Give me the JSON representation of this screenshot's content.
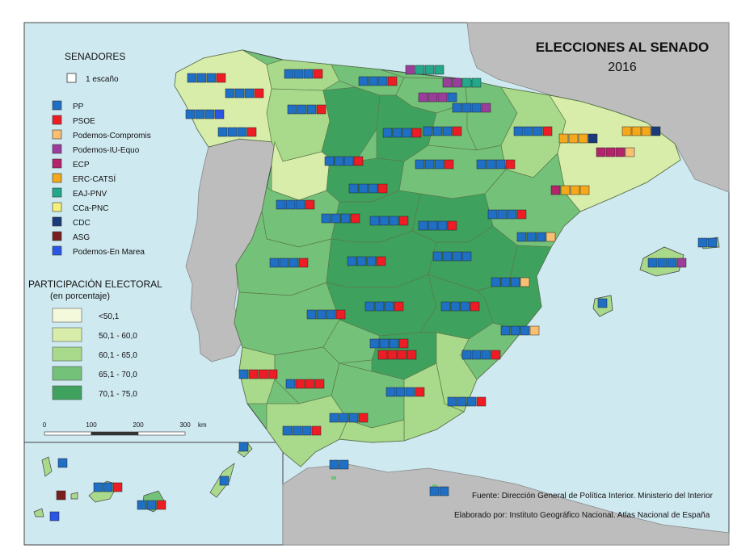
{
  "title": "ELECCIONES AL SENADO",
  "year": "2016",
  "senators_heading": "SENADORES",
  "seat_legend_label": "1 escaño",
  "parties": [
    {
      "name": "PP",
      "color": "#1f6fc5"
    },
    {
      "name": "PSOE",
      "color": "#ee1c24"
    },
    {
      "name": "Podemos-Compromis",
      "color": "#f9bf72"
    },
    {
      "name": "Podemos-IU-Equo",
      "color": "#9b3d9b"
    },
    {
      "name": "ECP",
      "color": "#b3246a"
    },
    {
      "name": "ERC-CATSÍ",
      "color": "#f5a81c"
    },
    {
      "name": "EAJ-PNV",
      "color": "#22a98b"
    },
    {
      "name": "CCa-PNC",
      "color": "#f5f07a"
    },
    {
      "name": "CDC",
      "color": "#1b3a7a"
    },
    {
      "name": "ASG",
      "color": "#7a1f1f"
    },
    {
      "name": "Podemos-En Marea",
      "color": "#2a56e6"
    }
  ],
  "participation": {
    "heading": "PARTICIPACIÓN ELECTORAL",
    "subheading": "(en porcentaje)",
    "classes": [
      {
        "label": "<50,1",
        "color": "#f5f9dc"
      },
      {
        "label": "50,1 - 60,0",
        "color": "#d9edaa"
      },
      {
        "label": "60,1 - 65,0",
        "color": "#a9d98a"
      },
      {
        "label": "65,1 - 70,0",
        "color": "#74c17a"
      },
      {
        "label": "70,1 - 75,0",
        "color": "#3ea25e"
      }
    ]
  },
  "scale": {
    "ticks": [
      "0",
      "100",
      "200",
      "300"
    ],
    "unit": "km"
  },
  "source": "Fuente: Dirección General de Política Interior. Ministerio del Interior",
  "credit": "Elaborado por: Instituto Geográfico Nacional. Atlas Nacional de España",
  "colors": {
    "sea": "#cfe9f1",
    "land_foreign": "#bdbdbd",
    "border": "#555555"
  }
}
